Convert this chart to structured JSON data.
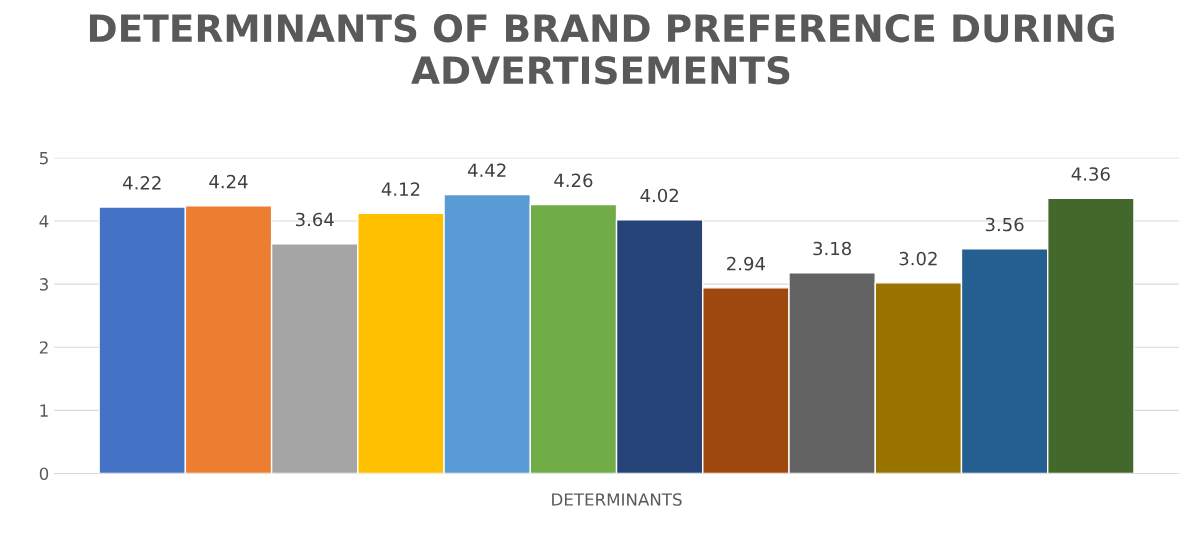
{
  "chart_data": {
    "type": "bar",
    "title": "DETERMINANTS OF BRAND PREFERENCE DURING ADVERTISEMENTS",
    "categories": [
      "DETERMINANTS"
    ],
    "series": [
      {
        "color": "#4472c4",
        "values": [
          4.22
        ]
      },
      {
        "color": "#ed7d31",
        "values": [
          4.24
        ]
      },
      {
        "color": "#a5a5a5",
        "values": [
          3.64
        ]
      },
      {
        "color": "#ffc000",
        "values": [
          4.12
        ]
      },
      {
        "color": "#5b9bd5",
        "values": [
          4.42
        ]
      },
      {
        "color": "#70ad47",
        "values": [
          4.26
        ]
      },
      {
        "color": "#264478",
        "values": [
          4.02
        ]
      },
      {
        "color": "#9e480e",
        "values": [
          2.94
        ]
      },
      {
        "color": "#636363",
        "values": [
          3.18
        ]
      },
      {
        "color": "#997300",
        "values": [
          3.02
        ]
      },
      {
        "color": "#255e91",
        "values": [
          3.56
        ]
      },
      {
        "color": "#43682b",
        "values": [
          4.36
        ]
      }
    ],
    "ylim": [
      0,
      5
    ],
    "yticks": [
      0,
      1,
      2,
      3,
      4,
      5
    ],
    "grid": "y",
    "data_labels": true
  }
}
